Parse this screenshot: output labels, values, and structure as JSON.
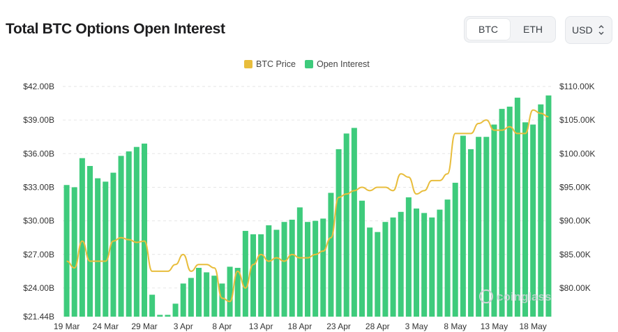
{
  "header": {
    "title": "Total BTC Options Open Interest",
    "asset_tabs": [
      {
        "label": "BTC",
        "active": true
      },
      {
        "label": "ETH",
        "active": false
      }
    ],
    "currency": {
      "label": "USD",
      "icon": "updown-chevron-icon"
    }
  },
  "watermark": "coinglass",
  "colors": {
    "open_interest": "#3ecb7c",
    "btc_price": "#e8bd3c",
    "grid": "#e6e6e6"
  },
  "chart_data": {
    "type": "bar",
    "title": "Total BTC Options Open Interest",
    "legend": {
      "placement": "top-center",
      "items": [
        "BTC Price",
        "Open Interest"
      ]
    },
    "grid": true,
    "x_ticks": [
      "19 Mar",
      "24 Mar",
      "29 Mar",
      "3 Apr",
      "8 Apr",
      "13 Apr",
      "18 Apr",
      "23 Apr",
      "28 Apr",
      "3 May",
      "8 May",
      "13 May",
      "18 May"
    ],
    "y_left": {
      "ticks": [
        "$42.00B",
        "$39.00B",
        "$36.00B",
        "$33.00B",
        "$30.00B",
        "$27.00B",
        "$24.00B",
        "$21.44B"
      ],
      "ylim": [
        21.44,
        42.0
      ],
      "unit": "B USD"
    },
    "y_right": {
      "ticks": [
        "$110.00K",
        "$105.00K",
        "$100.00K",
        "$95.00K",
        "$90.00K",
        "$85.00K",
        "$80.00K"
      ],
      "unit": "K USD"
    },
    "x": [
      "19 Mar",
      "20 Mar",
      "21 Mar",
      "22 Mar",
      "23 Mar",
      "24 Mar",
      "25 Mar",
      "26 Mar",
      "27 Mar",
      "28 Mar",
      "29 Mar",
      "30 Mar",
      "31 Mar",
      "1 Apr",
      "2 Apr",
      "3 Apr",
      "4 Apr",
      "5 Apr",
      "6 Apr",
      "7 Apr",
      "8 Apr",
      "9 Apr",
      "10 Apr",
      "11 Apr",
      "12 Apr",
      "13 Apr",
      "14 Apr",
      "15 Apr",
      "16 Apr",
      "17 Apr",
      "18 Apr",
      "19 Apr",
      "20 Apr",
      "21 Apr",
      "22 Apr",
      "23 Apr",
      "24 Apr",
      "25 Apr",
      "26 Apr",
      "27 Apr",
      "28 Apr",
      "29 Apr",
      "30 Apr",
      "1 May",
      "2 May",
      "3 May",
      "4 May",
      "5 May",
      "6 May",
      "7 May",
      "8 May",
      "9 May",
      "10 May",
      "11 May",
      "12 May",
      "13 May",
      "14 May",
      "15 May",
      "16 May",
      "17 May",
      "18 May",
      "19 May",
      "20 May"
    ],
    "series": [
      {
        "name": "Open Interest",
        "type": "bar",
        "axis": "left",
        "values": [
          33.2,
          33.0,
          35.6,
          34.9,
          33.8,
          33.5,
          34.3,
          35.8,
          36.2,
          36.6,
          36.9,
          23.4,
          21.6,
          21.6,
          22.6,
          24.4,
          24.9,
          25.8,
          25.4,
          25.1,
          24.4,
          25.9,
          25.8,
          29.1,
          28.8,
          28.8,
          29.6,
          29.2,
          29.9,
          30.1,
          31.2,
          29.9,
          30.0,
          30.2,
          32.5,
          36.4,
          37.8,
          38.3,
          31.8,
          29.4,
          29.0,
          29.9,
          30.3,
          30.8,
          32.1,
          31.1,
          30.7,
          30.3,
          31.0,
          31.9,
          33.4,
          37.6,
          36.4,
          37.5,
          37.5,
          38.6,
          40.0,
          40.2,
          41.0,
          38.8,
          38.6,
          40.4,
          41.2
        ]
      },
      {
        "name": "BTC Price",
        "type": "line",
        "axis": "right",
        "values": [
          84.0,
          83.0,
          87.0,
          84.0,
          84.0,
          84.0,
          87.0,
          87.5,
          87.2,
          86.8,
          87.0,
          82.5,
          82.5,
          82.5,
          83.5,
          85.0,
          82.5,
          83.5,
          83.5,
          83.0,
          78.5,
          78.0,
          82.5,
          80.0,
          83.5,
          85.0,
          84.0,
          84.5,
          84.0,
          85.0,
          84.5,
          84.5,
          85.0,
          85.5,
          87.5,
          93.5,
          94.0,
          94.5,
          95.0,
          94.5,
          95.0,
          95.0,
          94.5,
          97.0,
          96.5,
          94.0,
          94.5,
          96.0,
          96.0,
          97.0,
          103.0,
          103.0,
          103.0,
          104.5,
          105.0,
          103.5,
          103.5,
          104.0,
          103.0,
          103.0,
          106.5,
          106.0,
          105.5
        ]
      }
    ]
  }
}
